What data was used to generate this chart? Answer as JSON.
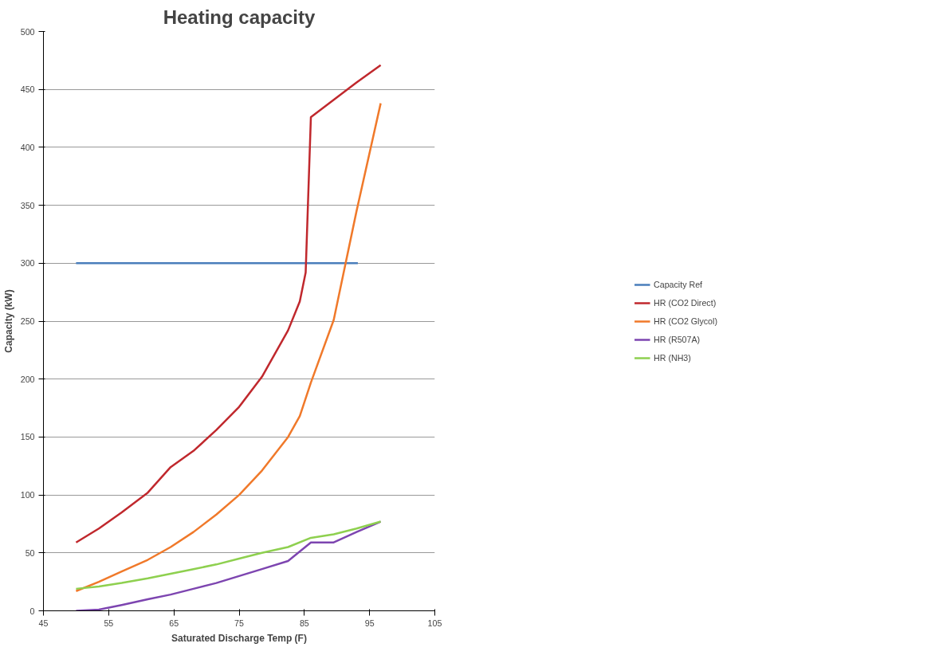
{
  "chart_data": {
    "type": "line",
    "title": "Heating capacity",
    "xlabel": "Saturated Discharge Temp (F)",
    "ylabel": "Capacity (kW)",
    "xlim": [
      45,
      105
    ],
    "xticks": [
      45,
      55,
      65,
      75,
      85,
      95,
      105
    ],
    "ylim": [
      0,
      500
    ],
    "yticks": [
      0,
      50,
      100,
      150,
      200,
      250,
      300,
      350,
      400,
      450,
      500
    ],
    "grid": "y",
    "legend": "right",
    "marker": "none",
    "line_style": "solid",
    "series": [
      {
        "name": "Capacity Ref",
        "color": "#4a7ebb",
        "x": [
          50,
          93.2
        ],
        "values": [
          300,
          300
        ]
      },
      {
        "name": "HR (CO2 Direct)",
        "color": "#c0282d",
        "x": [
          50,
          53.5,
          57,
          61,
          64.5,
          68,
          71.5,
          75,
          78.5,
          82.5,
          84.3,
          85.2,
          86,
          89.5,
          93,
          96.7
        ],
        "values": [
          59,
          71,
          85,
          102,
          124,
          138,
          156,
          176,
          202,
          242,
          267,
          292,
          426,
          441,
          456,
          471
        ]
      },
      {
        "name": "HR (CO2 Glycol)",
        "color": "#f0792a",
        "x": [
          50,
          53.5,
          57,
          61,
          64.5,
          68,
          71.5,
          75,
          78.5,
          82.5,
          84.3,
          86,
          89.5,
          93,
          96.7
        ],
        "values": [
          17,
          25,
          34,
          44,
          55,
          68,
          83,
          100,
          121,
          150,
          168,
          197,
          251,
          345,
          438
        ]
      },
      {
        "name": "HR (R507A)",
        "color": "#7d45b0",
        "x": [
          50,
          53.5,
          57,
          61,
          64.5,
          68,
          71.5,
          75,
          78.5,
          82.5,
          86,
          89.5,
          93,
          96.7
        ],
        "values": [
          0,
          1,
          5,
          10,
          14,
          19,
          24,
          30,
          36,
          43,
          59,
          59,
          68,
          77
        ]
      },
      {
        "name": "HR (NH3)",
        "color": "#8ed04f",
        "x": [
          50,
          53.5,
          57,
          61,
          64.5,
          68,
          71.5,
          75,
          78.5,
          82.5,
          86,
          89.5,
          93,
          96.7
        ],
        "values": [
          19,
          21,
          24,
          28,
          32,
          36,
          40,
          45,
          50,
          55,
          63,
          66,
          71,
          77
        ]
      }
    ]
  }
}
